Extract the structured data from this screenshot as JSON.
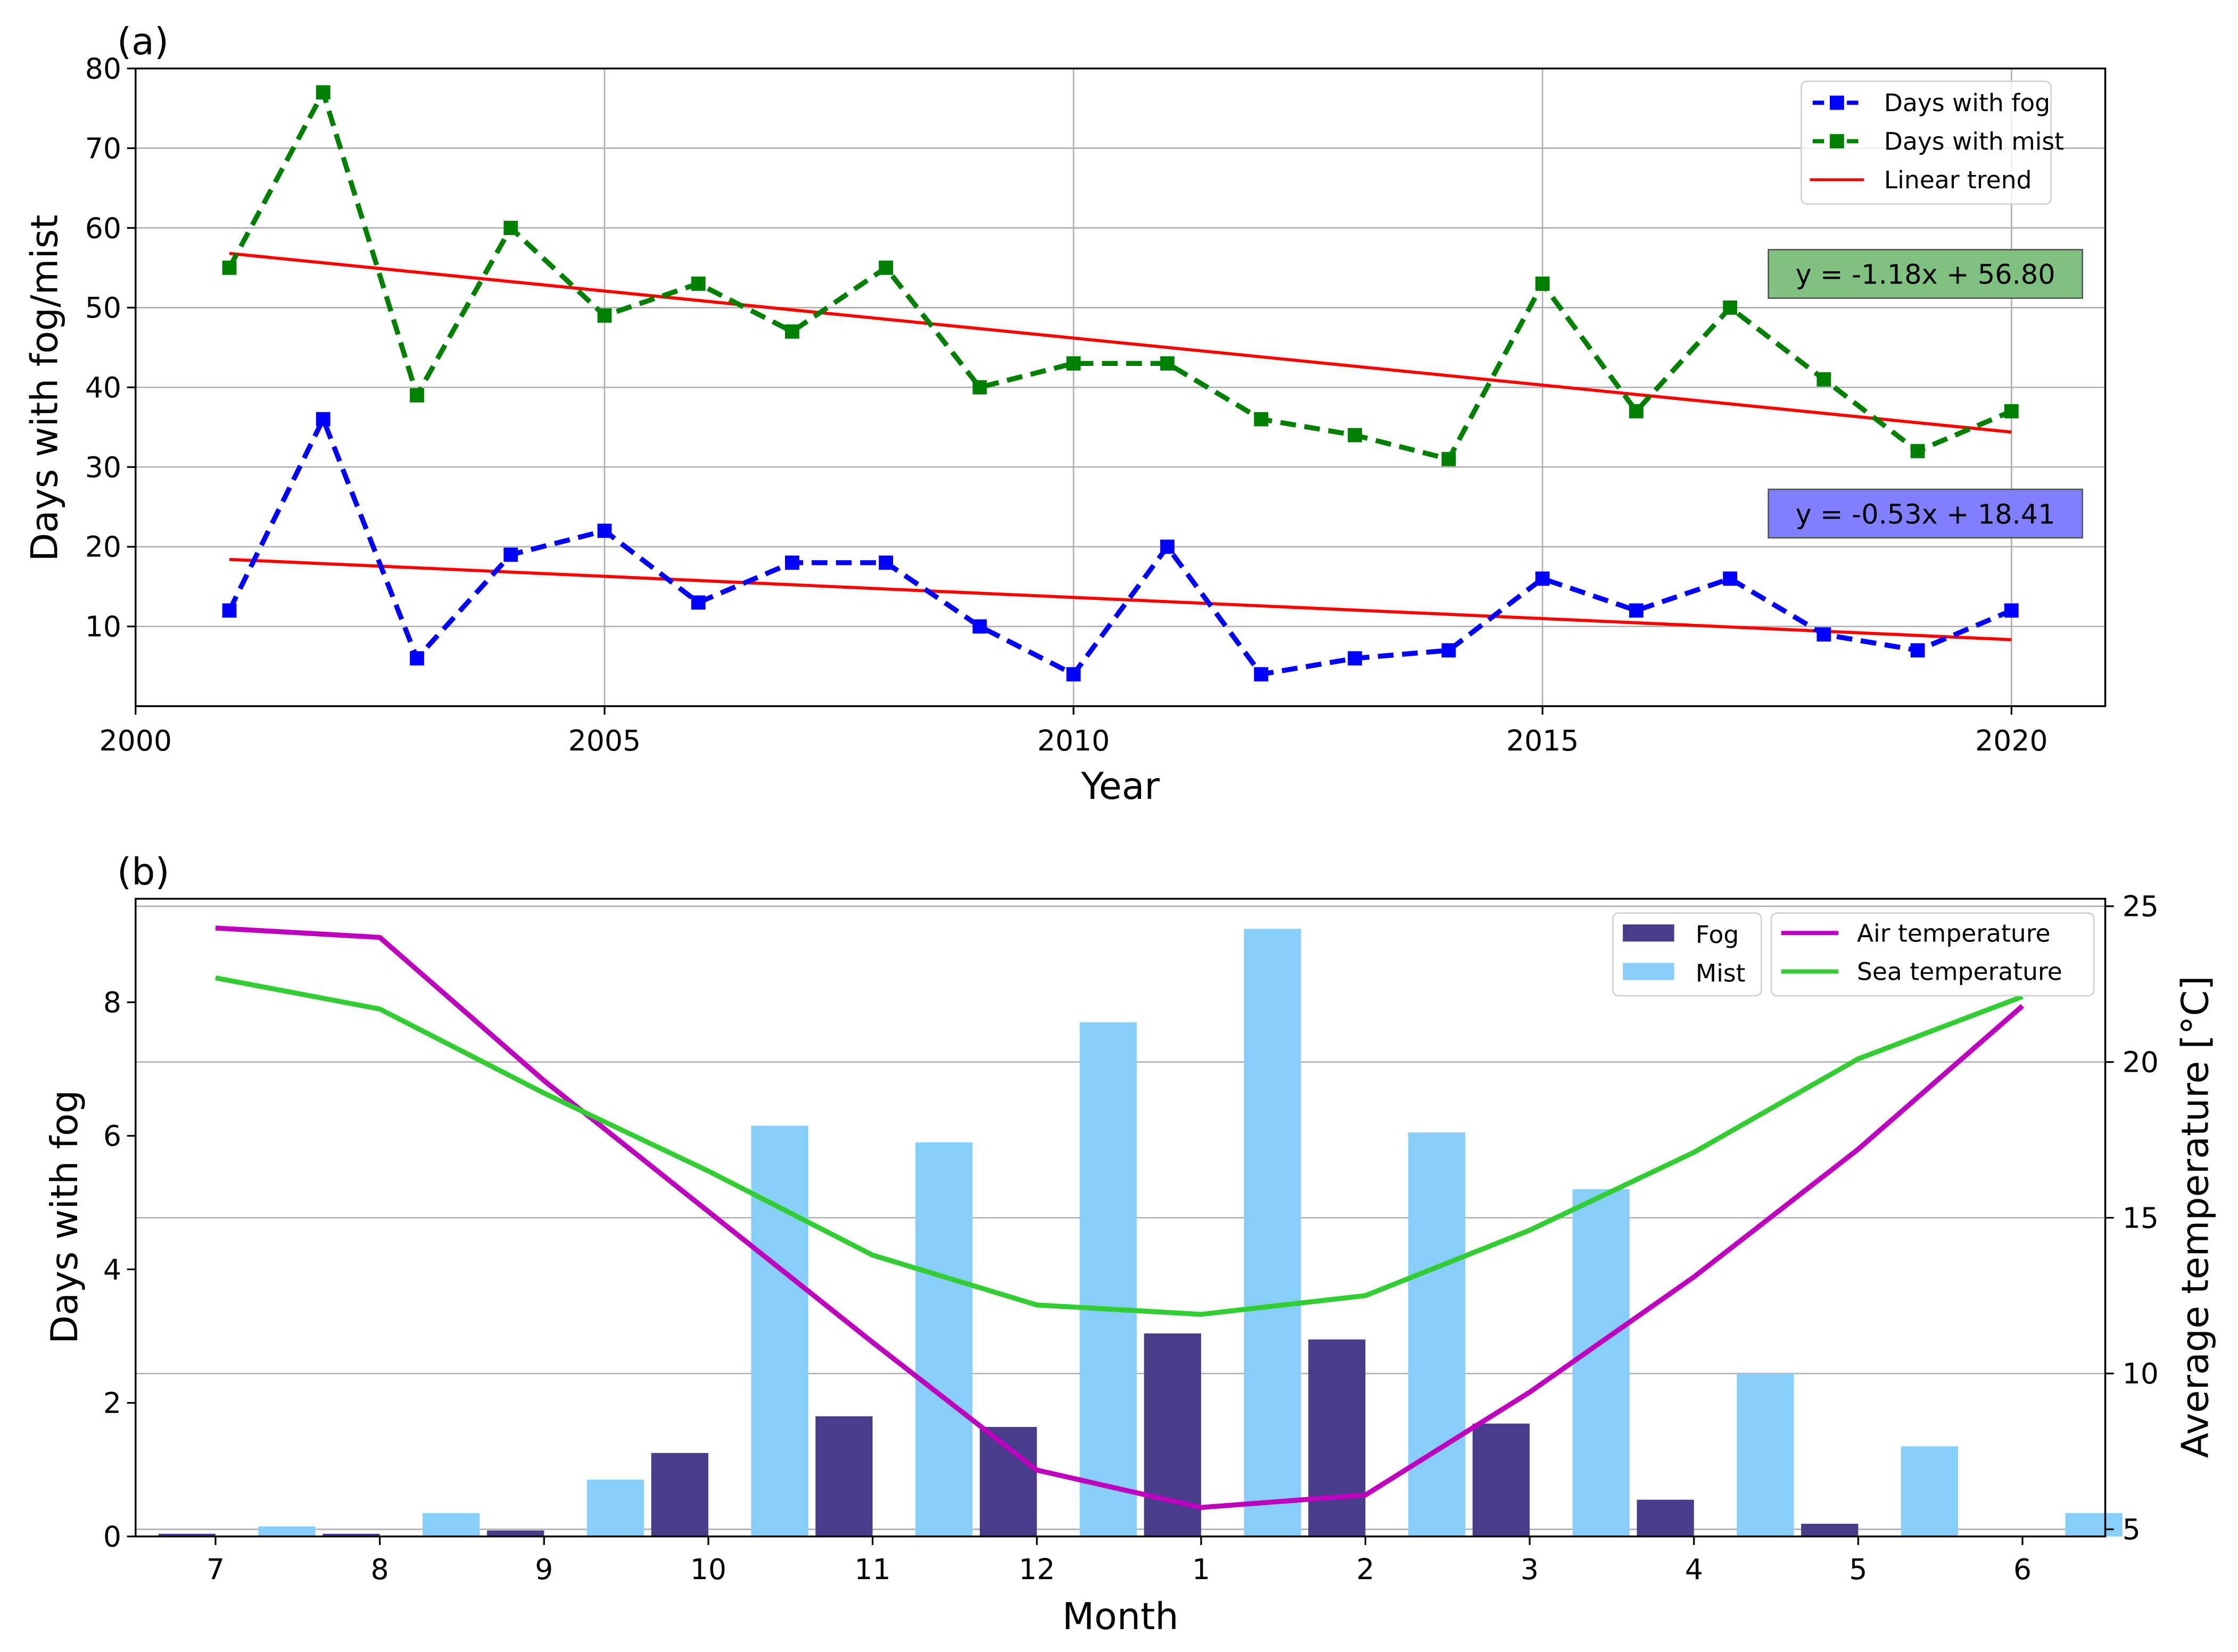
{
  "chart_data": [
    {
      "type": "line",
      "panel_label": "(a)",
      "xlabel": "Year",
      "ylabel": "Days with fog/mist",
      "xlim": [
        2000,
        2021
      ],
      "ylim": [
        0,
        80
      ],
      "xticks": [
        2000,
        2005,
        2010,
        2015,
        2020
      ],
      "yticks": [
        10,
        20,
        30,
        40,
        50,
        60,
        70,
        80
      ],
      "grid": true,
      "legend_position": "top-right",
      "x": [
        2001,
        2002,
        2003,
        2004,
        2005,
        2006,
        2007,
        2008,
        2009,
        2010,
        2011,
        2012,
        2013,
        2014,
        2015,
        2016,
        2017,
        2018,
        2019,
        2020
      ],
      "series": [
        {
          "name": "Days with fog",
          "color": "#0000ff",
          "style": "dashed-square-markers",
          "values": [
            12,
            36,
            6,
            19,
            22,
            13,
            18,
            18,
            10,
            4,
            20,
            4,
            6,
            7,
            16,
            12,
            16,
            9,
            7,
            12
          ]
        },
        {
          "name": "Days with mist",
          "color": "#008000",
          "style": "dashed-square-markers",
          "values": [
            55,
            77,
            39,
            60,
            49,
            53,
            47,
            55,
            40,
            43,
            43,
            36,
            34,
            31,
            53,
            37,
            50,
            41,
            32,
            37
          ]
        }
      ],
      "trends": [
        {
          "name": "Linear trend",
          "color": "#ff0000",
          "of": "Days with mist",
          "slope": -1.18,
          "intercept": 56.8,
          "equation": "y = -1.18x + 56.80",
          "box_color": "#80c080"
        },
        {
          "name": "Linear trend",
          "color": "#ff0000",
          "of": "Days with fog",
          "slope": -0.53,
          "intercept": 18.41,
          "equation": "y = -0.53x + 18.41",
          "box_color": "#8080ff"
        }
      ],
      "legend": [
        "Days with fog",
        "Days with mist",
        "Linear trend"
      ]
    },
    {
      "type": "bar",
      "panel_label": "(b)",
      "xlabel": "Month",
      "ylabel": "Days with fog",
      "y2label": "Average temperature [°C]",
      "categories": [
        "7",
        "8",
        "9",
        "10",
        "11",
        "12",
        "1",
        "2",
        "3",
        "4",
        "5",
        "6"
      ],
      "ylim": [
        0,
        9.55
      ],
      "yticks": [
        0,
        2,
        4,
        6,
        8
      ],
      "y2lim": [
        4.77,
        25.24
      ],
      "y2ticks": [
        5,
        10,
        15,
        20,
        25
      ],
      "grid": true,
      "bar_series": [
        {
          "name": "Fog",
          "color": "#483d8b",
          "values": [
            0.04,
            0.04,
            0.09,
            1.25,
            1.8,
            1.64,
            3.04,
            2.95,
            1.69,
            0.55,
            0.19,
            0.0
          ]
        },
        {
          "name": "Mist",
          "color": "#87cefa",
          "values": [
            0.15,
            0.35,
            0.85,
            6.15,
            5.9,
            7.7,
            9.1,
            6.05,
            5.2,
            2.44,
            1.35,
            0.35
          ]
        }
      ],
      "line_series": [
        {
          "name": "Air temperature",
          "color": "#bf00bf",
          "axis": "right",
          "values": [
            24.3,
            24.0,
            19.4,
            15.2,
            11.0,
            6.9,
            5.7,
            6.1,
            9.4,
            13.1,
            17.2,
            21.8
          ]
        },
        {
          "name": "Sea temperature",
          "color": "#32cd32",
          "axis": "right",
          "values": [
            22.7,
            21.7,
            19.0,
            16.5,
            13.8,
            12.2,
            11.9,
            12.5,
            14.6,
            17.1,
            20.1,
            22.1
          ]
        }
      ],
      "legends": [
        [
          "Fog",
          "Mist"
        ],
        [
          "Air temperature",
          "Sea temperature"
        ]
      ],
      "legend_position": "top-right"
    }
  ]
}
